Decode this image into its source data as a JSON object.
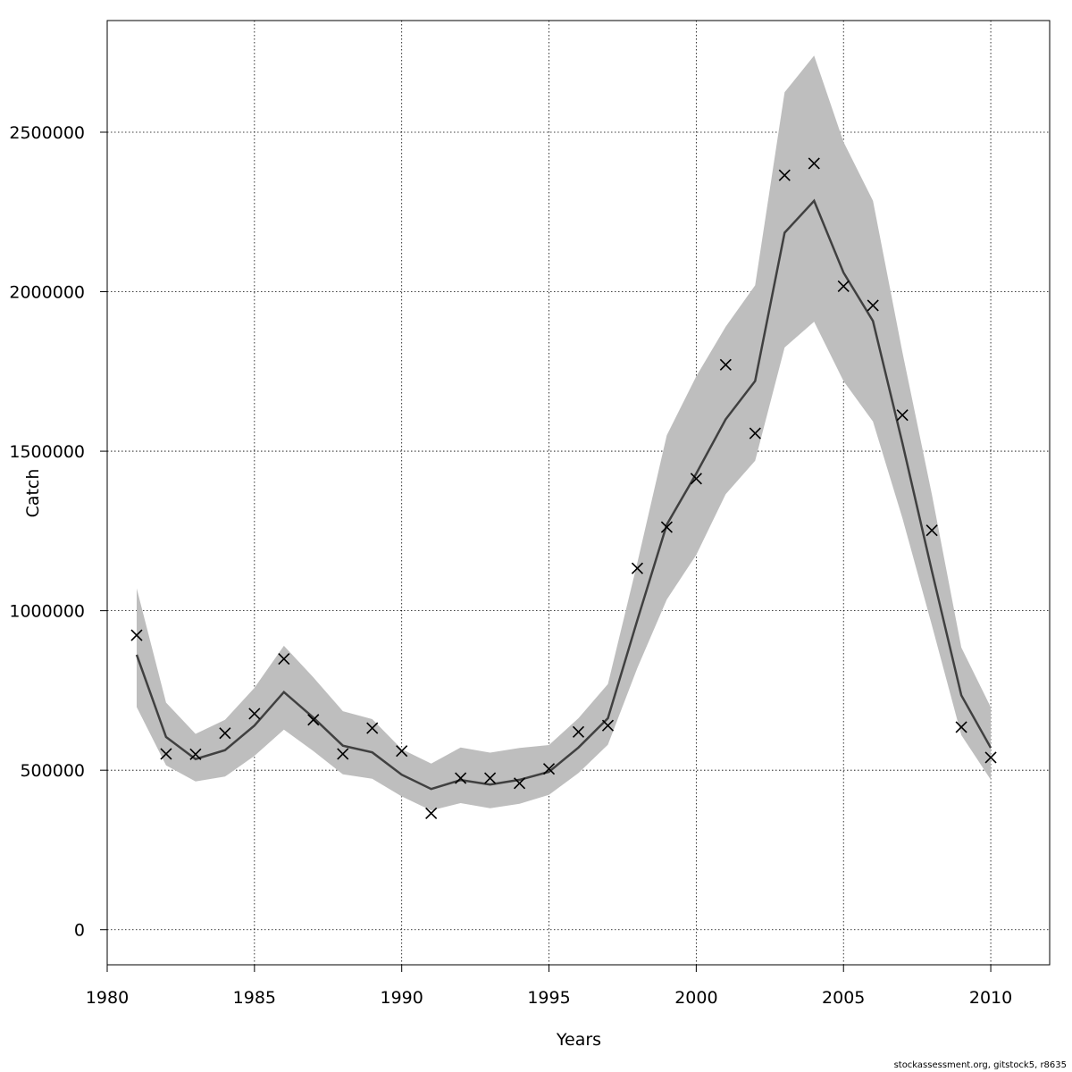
{
  "chart_data": {
    "type": "line",
    "xlabel": "Years",
    "ylabel": "Catch",
    "xlim": [
      1980,
      2012
    ],
    "ylim": [
      -110000,
      2850000
    ],
    "grid": true,
    "x_ticks": [
      1980,
      1985,
      1990,
      1995,
      2000,
      2005,
      2010
    ],
    "y_ticks": [
      0,
      500000,
      1000000,
      1500000,
      2000000,
      2500000
    ],
    "x": [
      1981,
      1982,
      1983,
      1984,
      1985,
      1986,
      1987,
      1988,
      1989,
      1990,
      1991,
      1992,
      1993,
      1994,
      1995,
      1996,
      1997,
      1998,
      1999,
      2000,
      2001,
      2002,
      2003,
      2004,
      2005,
      2006,
      2007,
      2008,
      2009,
      2010
    ],
    "series": [
      {
        "type": "line",
        "color": "#404040",
        "values": [
          862000,
          604000,
          535000,
          563000,
          640000,
          745000,
          665000,
          577000,
          556000,
          486000,
          441000,
          469000,
          455000,
          470000,
          495000,
          571000,
          663000,
          970000,
          1270000,
          1430000,
          1600000,
          1720000,
          2185000,
          2285000,
          2060000,
          1908000,
          1525000,
          1125000,
          735000,
          570000
        ]
      },
      {
        "type": "band",
        "color": "#bebebe",
        "lower": [
          698000,
          515000,
          465000,
          480000,
          545000,
          627000,
          560000,
          487000,
          473000,
          418000,
          374000,
          397000,
          381000,
          395000,
          423000,
          491000,
          580000,
          820000,
          1035000,
          1175000,
          1365000,
          1470000,
          1825000,
          1906000,
          1720000,
          1593000,
          1290000,
          955000,
          610000,
          470000
        ],
        "upper": [
          1070000,
          712000,
          614000,
          658000,
          758000,
          890000,
          791000,
          685000,
          660000,
          566000,
          521000,
          571000,
          555000,
          570000,
          579000,
          663000,
          770000,
          1150000,
          1550000,
          1735000,
          1890000,
          2020000,
          2625000,
          2740000,
          2470000,
          2285000,
          1810000,
          1365000,
          885000,
          697000
        ]
      },
      {
        "type": "scatter",
        "marker": "x",
        "color": "#000000",
        "values": [
          923000,
          551000,
          550000,
          616000,
          677000,
          849000,
          658000,
          551000,
          632000,
          560000,
          365000,
          475000,
          475000,
          459000,
          504000,
          620000,
          640000,
          1133000,
          1262000,
          1414000,
          1771000,
          1556000,
          2365000,
          2402000,
          2017000,
          1957000,
          1613000,
          1252000,
          635000,
          540000
        ]
      }
    ]
  },
  "footer_text": "stockassessment.org, gitstock5, r8635"
}
